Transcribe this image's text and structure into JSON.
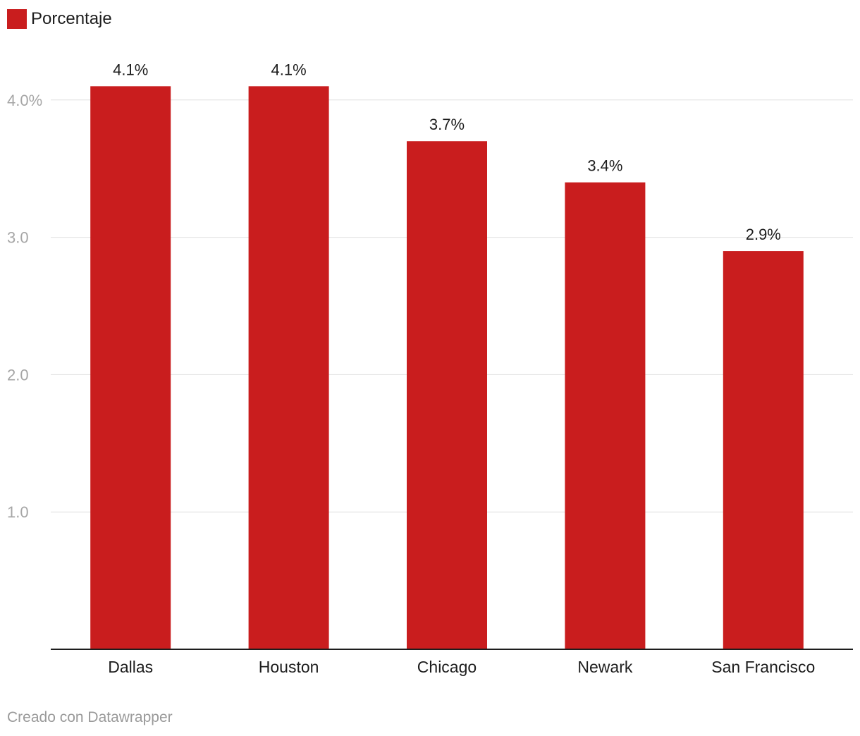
{
  "legend": {
    "label": "Porcentaje",
    "color": "#c91d1e"
  },
  "footer": {
    "credit": "Creado con Datawrapper"
  },
  "colors": {
    "bar": "#c91d1e",
    "grid": "#e0e0e0",
    "tick_label": "#a6a6a6",
    "baseline": "#1d1d1d",
    "text": "#1d1d1d"
  },
  "chart_data": {
    "type": "bar",
    "title": "",
    "xlabel": "",
    "ylabel": "",
    "series": [
      {
        "name": "Porcentaje",
        "values": [
          4.1,
          4.1,
          3.7,
          3.4,
          2.9
        ]
      }
    ],
    "categories": [
      "Dallas",
      "Houston",
      "Chicago",
      "Newark",
      "San Francisco"
    ],
    "data_labels": [
      "4.1%",
      "4.1%",
      "3.7%",
      "3.4%",
      "2.9%"
    ],
    "ylim": [
      0,
      4.1
    ],
    "yticks": [
      1.0,
      2.0,
      3.0,
      4.0
    ],
    "ytick_labels": [
      "1.0",
      "2.0",
      "3.0",
      "4.0%"
    ],
    "grid": true,
    "legend_position": "top-left"
  }
}
